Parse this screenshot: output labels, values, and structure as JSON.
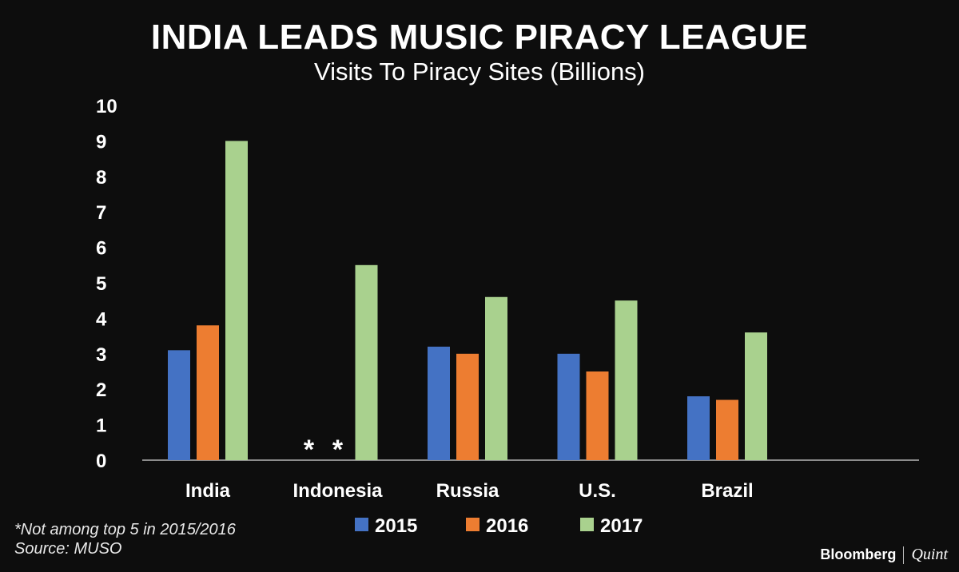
{
  "chart_data": {
    "type": "bar",
    "title": "INDIA LEADS MUSIC PIRACY LEAGUE",
    "subtitle": "Visits To Piracy Sites (Billions)",
    "categories": [
      "India",
      "Indonesia",
      "Russia",
      "U.S.",
      "Brazil"
    ],
    "series": [
      {
        "name": "2015",
        "color": "#4472c4",
        "values": [
          3.1,
          null,
          3.2,
          3.0,
          1.8
        ]
      },
      {
        "name": "2016",
        "color": "#ed7d31",
        "values": [
          3.8,
          null,
          3.0,
          2.5,
          1.7
        ]
      },
      {
        "name": "2017",
        "color": "#a9d18e",
        "values": [
          9.0,
          5.5,
          4.6,
          4.5,
          3.6
        ]
      }
    ],
    "ylim": [
      0,
      10
    ],
    "yticks": [
      0,
      1,
      2,
      3,
      4,
      5,
      6,
      7,
      8,
      9,
      10
    ],
    "grid": false,
    "legend": "bottom",
    "missing_marker": "*"
  },
  "footnote": "*Not among top 5 in 2015/2016",
  "source": "Source: MUSO",
  "brand": {
    "left": "Bloomberg",
    "right": "Quint"
  }
}
